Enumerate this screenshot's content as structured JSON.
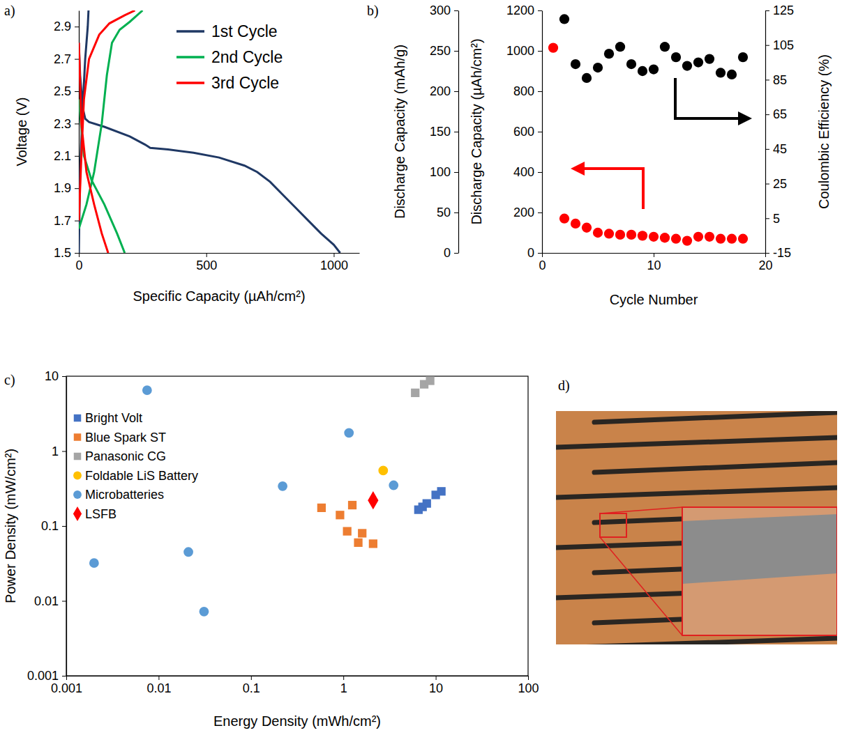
{
  "chart_data": [
    {
      "type": "line",
      "panel_label": "a)",
      "x_label": "Specific Capacity (µAh/cm²)",
      "y_label": "Voltage (V)",
      "xlim": [
        0,
        1100
      ],
      "xticks": [
        0,
        500,
        1000
      ],
      "ylim": [
        1.5,
        3.0
      ],
      "yticks": [
        1.5,
        1.7,
        1.9,
        2.1,
        2.3,
        2.5,
        2.7,
        2.9
      ],
      "legend": "top-right",
      "series": [
        {
          "name": "1st Cycle",
          "color": "#1f3864",
          "x": [
            0,
            5,
            15,
            25,
            40,
            100,
            200,
            260,
            280,
            350,
            450,
            550,
            650,
            700,
            750,
            800,
            850,
            900,
            950,
            1000,
            1025,
            null,
            0,
            5,
            15,
            25,
            35,
            38
          ],
          "values": [
            2.8,
            2.6,
            2.4,
            2.33,
            2.31,
            2.28,
            2.22,
            2.17,
            2.15,
            2.14,
            2.12,
            2.09,
            2.04,
            2.0,
            1.94,
            1.86,
            1.78,
            1.7,
            1.62,
            1.55,
            1.5,
            null,
            1.5,
            2.0,
            2.4,
            2.7,
            2.9,
            3.0
          ]
        },
        {
          "name": "2nd Cycle",
          "color": "#00b050",
          "x": [
            0,
            20,
            50,
            100,
            150,
            180,
            null,
            0,
            30,
            60,
            90,
            110,
            130,
            160,
            200,
            250
          ],
          "values": [
            2.45,
            2.1,
            1.95,
            1.8,
            1.62,
            1.5,
            null,
            1.65,
            1.8,
            2.0,
            2.3,
            2.6,
            2.8,
            2.88,
            2.93,
            3.0
          ]
        },
        {
          "name": "3rd Cycle",
          "color": "#ff0000",
          "x": [
            0,
            10,
            30,
            60,
            90,
            115,
            null,
            0,
            10,
            20,
            40,
            80,
            120,
            180,
            220
          ],
          "values": [
            2.8,
            2.3,
            2.0,
            1.8,
            1.62,
            1.5,
            null,
            1.7,
            2.1,
            2.45,
            2.7,
            2.85,
            2.92,
            2.97,
            3.0
          ]
        }
      ]
    },
    {
      "type": "scatter",
      "panel_label": "b)",
      "x_label": "Cycle Number",
      "xlim": [
        0,
        20
      ],
      "xticks": [
        0,
        10,
        20
      ],
      "y_label": "Discharge Capacity (µAh/cm²)",
      "ylim": [
        0,
        1200
      ],
      "yticks": [
        0,
        200,
        400,
        600,
        800,
        1000,
        1200
      ],
      "y3_label": "Discharge Capacity (mAh/g)",
      "y3lim": [
        0,
        300
      ],
      "y3ticks": [
        0,
        50,
        100,
        150,
        200,
        250,
        300
      ],
      "y2_label": "Coulombic Efficiency (%)",
      "y2lim": [
        -15,
        125
      ],
      "y2ticks": [
        -15,
        5,
        25,
        45,
        65,
        85,
        105,
        125
      ],
      "series": [
        {
          "color": "#ff0000",
          "marker": "circle",
          "x": [
            1,
            2,
            3,
            4,
            5,
            6,
            7,
            8,
            9,
            10,
            11,
            12,
            13,
            14,
            15,
            16,
            17,
            18
          ],
          "values": [
            1015,
            170,
            145,
            125,
            100,
            95,
            90,
            90,
            85,
            80,
            75,
            70,
            60,
            80,
            80,
            70,
            70,
            70
          ]
        },
        {
          "color": "#000000",
          "marker": "circle",
          "axis": "y2",
          "x": [
            2,
            3,
            4,
            5,
            6,
            7,
            8,
            9,
            10,
            11,
            12,
            13,
            14,
            15,
            16,
            17,
            18
          ],
          "values": [
            120,
            94,
            86,
            92,
            100,
            104,
            94,
            90,
            91,
            104,
            98,
            93,
            95,
            97,
            89,
            88,
            98
          ]
        }
      ]
    },
    {
      "type": "scatter",
      "panel_label": "c)",
      "log": true,
      "x_label": "Energy Density (mWh/cm²)",
      "y_label": "Power Density (mW/cm²)",
      "xlim": [
        0.001,
        100
      ],
      "xticks": [
        0.001,
        0.01,
        0.1,
        1,
        10,
        100
      ],
      "ylim": [
        0.001,
        10
      ],
      "yticks": [
        0.001,
        0.01,
        0.1,
        1,
        10
      ],
      "legend": "top-left",
      "series": [
        {
          "name": "Bright Volt",
          "color": "#4472c4",
          "marker": "square",
          "x": [
            6.5,
            7.2,
            8,
            10,
            11.5
          ],
          "values": [
            0.165,
            0.18,
            0.2,
            0.26,
            0.29
          ]
        },
        {
          "name": "Blue Spark ST",
          "color": "#ed7d31",
          "marker": "square",
          "x": [
            0.58,
            0.92,
            1.25,
            1.1,
            1.45,
            1.6,
            2.1
          ],
          "values": [
            0.175,
            0.14,
            0.19,
            0.085,
            0.06,
            0.08,
            0.058
          ]
        },
        {
          "name": "Panasonic CG",
          "color": "#a5a5a5",
          "marker": "square",
          "x": [
            6,
            7.5,
            8.7
          ],
          "values": [
            6,
            7.8,
            8.7
          ]
        },
        {
          "name": "Foldable LiS Battery",
          "color": "#ffc000",
          "marker": "circle",
          "x": [
            2.7
          ],
          "values": [
            0.55
          ]
        },
        {
          "name": "Microbatteries",
          "color": "#5b9bd5",
          "marker": "circle",
          "x": [
            0.0075,
            1.15,
            0.22,
            3.5,
            0.002,
            0.021,
            0.031
          ],
          "values": [
            6.5,
            1.75,
            0.34,
            0.35,
            0.032,
            0.045,
            0.0072
          ]
        },
        {
          "name": "LSFB",
          "color": "#ff0000",
          "marker": "diamond",
          "x": [
            2.1
          ],
          "values": [
            0.22
          ]
        }
      ]
    }
  ],
  "image": {
    "panel_label": "d)"
  }
}
